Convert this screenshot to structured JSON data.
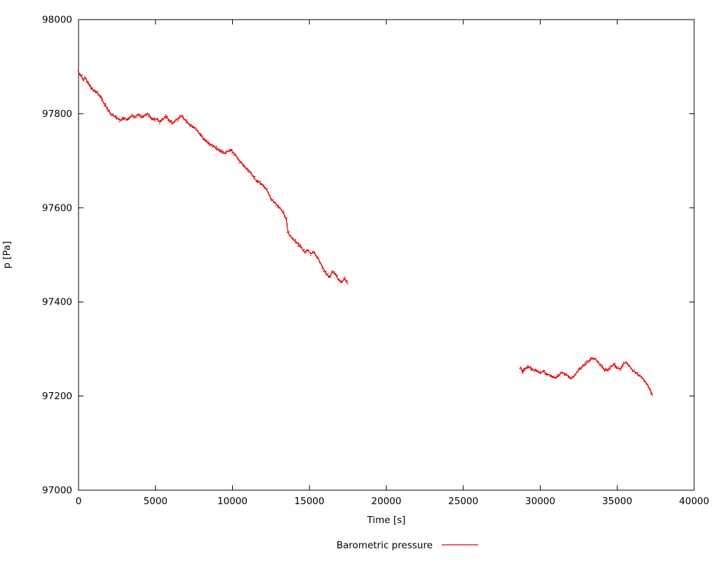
{
  "chart_data": {
    "type": "scatter",
    "title": "",
    "xlabel": "Time [s]",
    "ylabel": "p [Pa]",
    "xlim": [
      0,
      40000
    ],
    "ylim": [
      97000,
      98000
    ],
    "xticks": [
      0,
      5000,
      10000,
      15000,
      20000,
      25000,
      30000,
      35000,
      40000
    ],
    "yticks": [
      97000,
      97200,
      97400,
      97600,
      97800,
      98000
    ],
    "grid": false,
    "legend_position": "bottom-center",
    "series": [
      {
        "name": "Barometric pressure",
        "color": "#e00000",
        "marker": "dot",
        "segments": [
          [
            [
              0,
              97888
            ],
            [
              150,
              97882
            ],
            [
              300,
              97872
            ],
            [
              450,
              97876
            ],
            [
              600,
              97866
            ],
            [
              750,
              97860
            ],
            [
              900,
              97852
            ],
            [
              1100,
              97848
            ],
            [
              1300,
              97842
            ],
            [
              1500,
              97832
            ],
            [
              1700,
              97820
            ],
            [
              1900,
              97810
            ],
            [
              2100,
              97800
            ],
            [
              2300,
              97795
            ],
            [
              2500,
              97790
            ],
            [
              2700,
              97786
            ],
            [
              2900,
              97792
            ],
            [
              3100,
              97788
            ],
            [
              3300,
              97792
            ],
            [
              3500,
              97797
            ],
            [
              3700,
              97794
            ],
            [
              3900,
              97800
            ],
            [
              4100,
              97792
            ],
            [
              4300,
              97796
            ],
            [
              4500,
              97800
            ],
            [
              4700,
              97792
            ],
            [
              4900,
              97786
            ],
            [
              5100,
              97790
            ],
            [
              5300,
              97782
            ],
            [
              5500,
              97788
            ],
            [
              5700,
              97795
            ],
            [
              5900,
              97786
            ],
            [
              6100,
              97780
            ],
            [
              6300,
              97786
            ],
            [
              6500,
              97790
            ],
            [
              6700,
              97795
            ],
            [
              6900,
              97788
            ],
            [
              7100,
              97780
            ],
            [
              7300,
              97774
            ],
            [
              7500,
              97770
            ],
            [
              7700,
              97764
            ],
            [
              7900,
              97756
            ],
            [
              8100,
              97748
            ],
            [
              8300,
              97742
            ],
            [
              8500,
              97736
            ],
            [
              8700,
              97732
            ],
            [
              8900,
              97728
            ],
            [
              9100,
              97724
            ],
            [
              9300,
              97720
            ],
            [
              9500,
              97716
            ],
            [
              9700,
              97720
            ],
            [
              9900,
              97724
            ],
            [
              10100,
              97716
            ],
            [
              10300,
              97708
            ],
            [
              10500,
              97698
            ],
            [
              10700,
              97690
            ],
            [
              10900,
              97684
            ],
            [
              11100,
              97678
            ],
            [
              11300,
              97670
            ],
            [
              11500,
              97660
            ],
            [
              11700,
              97655
            ],
            [
              11900,
              97650
            ],
            [
              12100,
              97644
            ],
            [
              12300,
              97634
            ],
            [
              12500,
              97620
            ],
            [
              12700,
              97612
            ],
            [
              12900,
              97606
            ],
            [
              13100,
              97598
            ],
            [
              13300,
              97590
            ],
            [
              13500,
              97576
            ],
            [
              13600,
              97550
            ],
            [
              13700,
              97542
            ],
            [
              13900,
              97534
            ],
            [
              14100,
              97528
            ],
            [
              14300,
              97522
            ],
            [
              14500,
              97514
            ],
            [
              14700,
              97506
            ],
            [
              14900,
              97510
            ],
            [
              15100,
              97502
            ],
            [
              15300,
              97506
            ],
            [
              15500,
              97496
            ],
            [
              15700,
              97484
            ],
            [
              15900,
              97472
            ],
            [
              16100,
              97460
            ],
            [
              16300,
              97452
            ],
            [
              16500,
              97464
            ],
            [
              16700,
              97458
            ],
            [
              16900,
              97446
            ],
            [
              17100,
              97442
            ],
            [
              17300,
              97450
            ],
            [
              17500,
              97438
            ]
          ],
          [
            [
              28700,
              97262
            ],
            [
              28850,
              97250
            ],
            [
              29000,
              97258
            ],
            [
              29200,
              97262
            ],
            [
              29400,
              97258
            ],
            [
              29600,
              97255
            ],
            [
              29800,
              97252
            ],
            [
              30000,
              97250
            ],
            [
              30200,
              97252
            ],
            [
              30400,
              97248
            ],
            [
              30600,
              97245
            ],
            [
              30800,
              97242
            ],
            [
              31000,
              97238
            ],
            [
              31200,
              97245
            ],
            [
              31400,
              97250
            ],
            [
              31600,
              97247
            ],
            [
              31800,
              97243
            ],
            [
              32000,
              97238
            ],
            [
              32200,
              97242
            ],
            [
              32400,
              97252
            ],
            [
              32600,
              97258
            ],
            [
              32800,
              97264
            ],
            [
              33000,
              97270
            ],
            [
              33200,
              97276
            ],
            [
              33400,
              97280
            ],
            [
              33600,
              97278
            ],
            [
              33800,
              97270
            ],
            [
              34000,
              97262
            ],
            [
              34200,
              97256
            ],
            [
              34400,
              97255
            ],
            [
              34600,
              97262
            ],
            [
              34800,
              97268
            ],
            [
              35000,
              97260
            ],
            [
              35200,
              97258
            ],
            [
              35400,
              97268
            ],
            [
              35600,
              97272
            ],
            [
              35800,
              97264
            ],
            [
              36000,
              97255
            ],
            [
              36200,
              97250
            ],
            [
              36400,
              97245
            ],
            [
              36600,
              97240
            ],
            [
              36800,
              97232
            ],
            [
              37000,
              97222
            ],
            [
              37200,
              97208
            ],
            [
              37300,
              97200
            ]
          ]
        ]
      }
    ]
  }
}
